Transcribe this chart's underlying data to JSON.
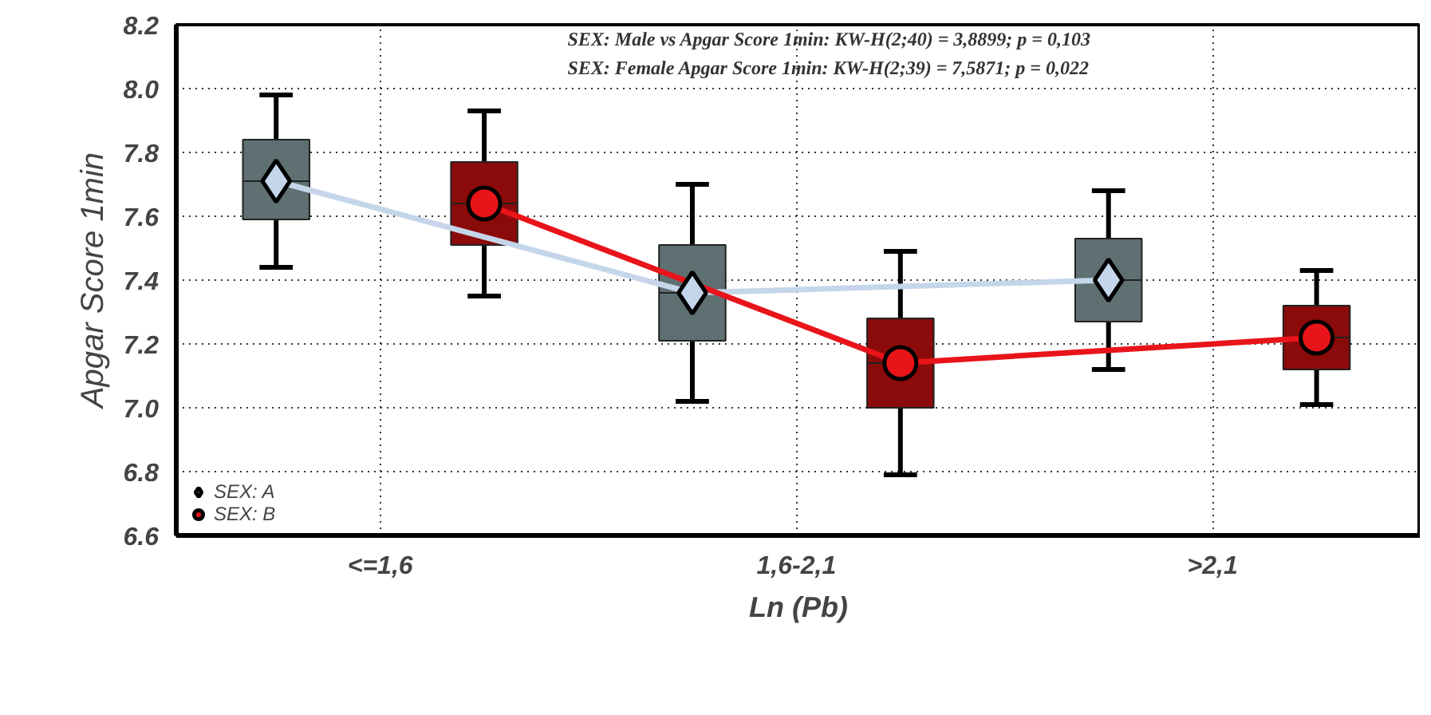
{
  "chart_data": {
    "type": "box",
    "xlabel": "Ln (Pb)",
    "ylabel": "Apgar Score 1min",
    "annotations": [
      "SEX: Male vs  Apgar Score 1min:  KW-H(2;40) = 3,8899; p = 0,103",
      "SEX: Female  Apgar Score 1min:  KW-H(2;39) = 7,5871; p = 0,022"
    ],
    "categories": [
      "<=1,6",
      "1,6-2,1",
      ">2,1"
    ],
    "ylim": [
      6.6,
      8.2
    ],
    "yticks": [
      {
        "value": 6.6,
        "label": "6.6"
      },
      {
        "value": 6.8,
        "label": "6.8"
      },
      {
        "value": 7.0,
        "label": "7.0"
      },
      {
        "value": 7.2,
        "label": "7.2"
      },
      {
        "value": 7.4,
        "label": "7.4"
      },
      {
        "value": 7.6,
        "label": "7.6"
      },
      {
        "value": 7.8,
        "label": "7.8"
      },
      {
        "value": 8.0,
        "label": "8.0"
      },
      {
        "value": 8.2,
        "label": "8.2"
      }
    ],
    "grid": true,
    "legend": "bottom left",
    "series": [
      {
        "color": "#5f7072",
        "boxes": [
          {
            "low": 7.44,
            "q1": 7.59,
            "median": 7.71,
            "q3": 7.84,
            "high": 7.98
          },
          {
            "low": 7.02,
            "q1": 7.21,
            "median": 7.36,
            "q3": 7.51,
            "high": 7.7
          },
          {
            "low": 7.12,
            "q1": 7.27,
            "median": 7.4,
            "q3": 7.53,
            "high": 7.68
          }
        ]
      },
      {
        "color": "#8b0a0a",
        "boxes": [
          {
            "low": 7.35,
            "q1": 7.51,
            "median": 7.64,
            "q3": 7.77,
            "high": 7.93
          },
          {
            "low": 6.79,
            "q1": 7.0,
            "median": 7.14,
            "q3": 7.28,
            "high": 7.49
          },
          {
            "low": 7.01,
            "q1": 7.12,
            "median": 7.22,
            "q3": 7.32,
            "high": 7.43
          }
        ]
      },
      {
        "type": "line",
        "name": "SEX: A",
        "color": "#c5d6ea",
        "marker": "diamond",
        "line_style": "solid",
        "values": [
          7.71,
          7.36,
          7.4
        ]
      },
      {
        "type": "line",
        "name": "SEX: B",
        "color": "#e8141a",
        "marker": "circle",
        "line_style": "solid",
        "values": [
          7.64,
          7.14,
          7.22
        ]
      }
    ]
  }
}
